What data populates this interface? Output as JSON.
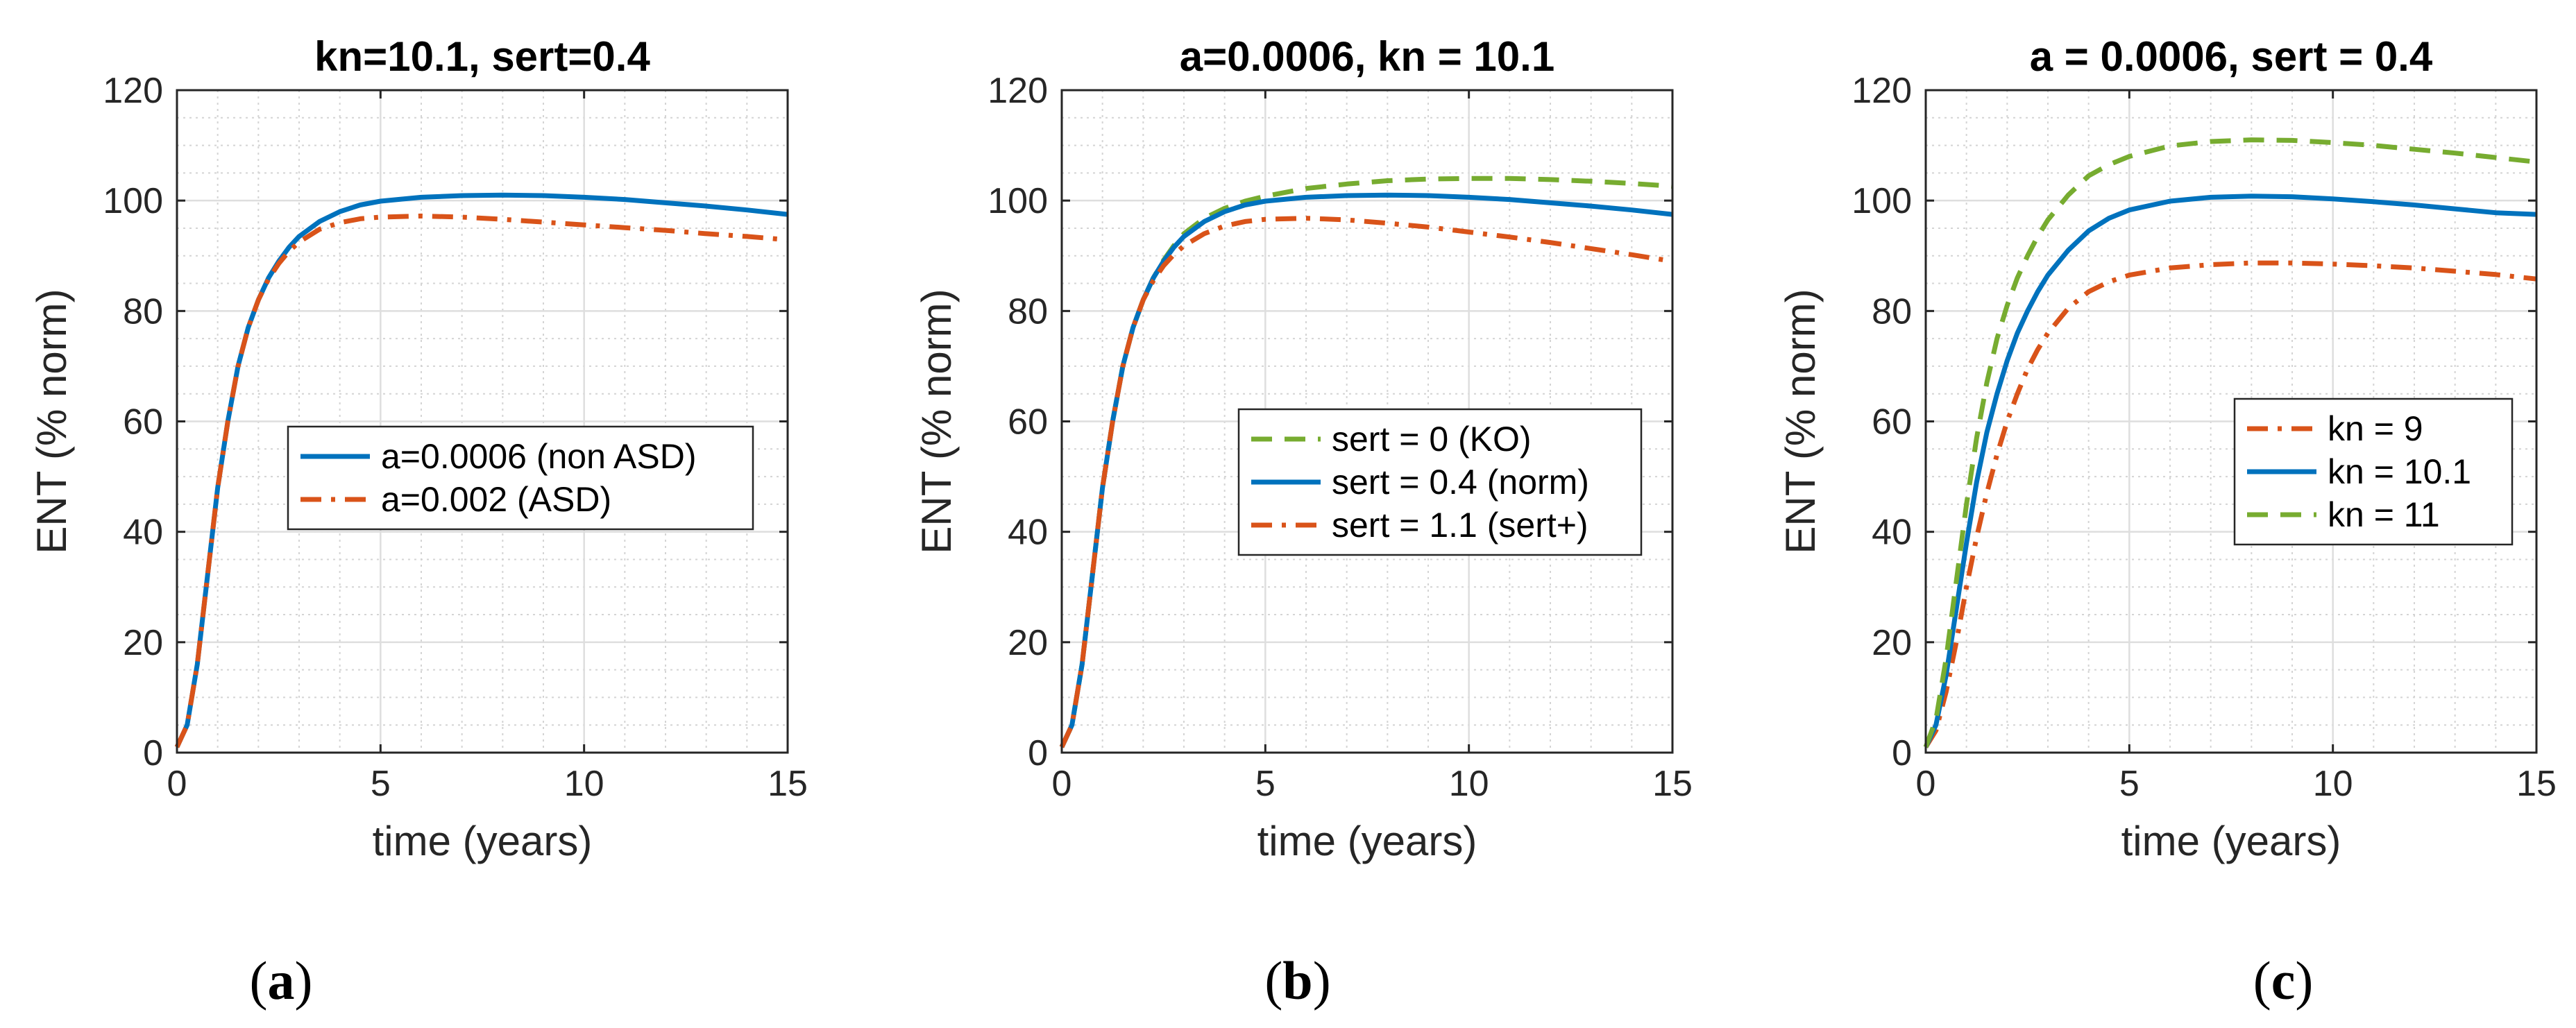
{
  "chart_data": [
    {
      "type": "line",
      "title": "kn=10.1, sert=0.4",
      "xlabel": "time (years)",
      "ylabel": "ENT (% norm)",
      "xlim": [
        0,
        15
      ],
      "ylim": [
        0,
        120
      ],
      "xticks": [
        0,
        5,
        10,
        15
      ],
      "yticks": [
        0,
        20,
        40,
        60,
        80,
        100,
        120
      ],
      "grid": true,
      "legend_position": "center-right",
      "caption": {
        "open": "(",
        "letter": "a",
        "close": ")"
      },
      "series": [
        {
          "name": "a=0.0006 (non ASD)",
          "color": "#0072BD",
          "style": "solid",
          "x": [
            0,
            0.25,
            0.5,
            0.75,
            1,
            1.25,
            1.5,
            1.75,
            2,
            2.25,
            2.5,
            2.75,
            3,
            3.5,
            4,
            4.5,
            5,
            6,
            7,
            8,
            9,
            10,
            11,
            12,
            13,
            14,
            15
          ],
          "y": [
            1,
            5,
            16,
            32,
            48,
            60,
            70,
            77,
            82,
            86,
            89,
            91.5,
            93.5,
            96.2,
            98,
            99.2,
            99.9,
            100.6,
            100.9,
            101,
            100.9,
            100.6,
            100.2,
            99.6,
            99,
            98.3,
            97.5
          ]
        },
        {
          "name": "a=0.002 (ASD)",
          "color": "#D95319",
          "style": "dashdot",
          "x": [
            0,
            0.25,
            0.5,
            0.75,
            1,
            1.25,
            1.5,
            1.75,
            2,
            2.25,
            2.5,
            2.75,
            3,
            3.5,
            4,
            4.5,
            5,
            6,
            7,
            8,
            9,
            10,
            11,
            12,
            13,
            14,
            15
          ],
          "y": [
            1,
            5,
            16,
            32,
            48,
            60,
            70,
            77,
            82,
            85.8,
            88.6,
            90.8,
            92.5,
            94.8,
            96,
            96.7,
            97,
            97.2,
            97,
            96.6,
            96.1,
            95.6,
            95.1,
            94.6,
            94,
            93.5,
            92.9
          ]
        }
      ]
    },
    {
      "type": "line",
      "title": "a=0.0006, kn = 10.1",
      "xlabel": "time (years)",
      "ylabel": "ENT (% norm)",
      "xlim": [
        0,
        15
      ],
      "ylim": [
        0,
        120
      ],
      "xticks": [
        0,
        5,
        10,
        15
      ],
      "yticks": [
        0,
        20,
        40,
        60,
        80,
        100,
        120
      ],
      "grid": true,
      "legend_position": "center-right",
      "caption": {
        "open": "(",
        "letter": "b",
        "close": ")"
      },
      "series": [
        {
          "name": "sert = 0 (KO)",
          "color": "#77AC30",
          "style": "dashed",
          "x": [
            0,
            0.25,
            0.5,
            0.75,
            1,
            1.25,
            1.5,
            1.75,
            2,
            2.25,
            2.5,
            2.75,
            3,
            3.5,
            4,
            4.5,
            5,
            6,
            7,
            8,
            9,
            10,
            11,
            12,
            13,
            14,
            15
          ],
          "y": [
            1,
            5,
            16,
            32,
            48,
            60,
            70,
            77,
            82,
            86,
            89.2,
            91.8,
            94,
            96.8,
            98.6,
            99.9,
            100.8,
            102.2,
            103,
            103.6,
            103.9,
            104,
            104,
            103.8,
            103.5,
            103.1,
            102.6
          ]
        },
        {
          "name": "sert = 0.4 (norm)",
          "color": "#0072BD",
          "style": "solid",
          "x": [
            0,
            0.25,
            0.5,
            0.75,
            1,
            1.25,
            1.5,
            1.75,
            2,
            2.25,
            2.5,
            2.75,
            3,
            3.5,
            4,
            4.5,
            5,
            6,
            7,
            8,
            9,
            10,
            11,
            12,
            13,
            14,
            15
          ],
          "y": [
            1,
            5,
            16,
            32,
            48,
            60,
            70,
            77,
            82,
            86,
            89,
            91.5,
            93.5,
            96.2,
            98,
            99.2,
            99.9,
            100.6,
            100.9,
            101,
            100.9,
            100.6,
            100.2,
            99.6,
            99,
            98.3,
            97.5
          ]
        },
        {
          "name": "sert = 1.1 (sert+)",
          "color": "#D95319",
          "style": "dashdot",
          "x": [
            0,
            0.25,
            0.5,
            0.75,
            1,
            1.25,
            1.5,
            1.75,
            2,
            2.25,
            2.5,
            2.75,
            3,
            3.5,
            4,
            4.5,
            5,
            6,
            7,
            8,
            9,
            10,
            11,
            12,
            13,
            14,
            15
          ],
          "y": [
            1,
            5,
            16,
            32,
            48,
            60,
            70,
            77,
            82,
            85.5,
            88.2,
            90.2,
            91.8,
            94,
            95.4,
            96.2,
            96.6,
            96.8,
            96.5,
            95.9,
            95.2,
            94.3,
            93.4,
            92.4,
            91.3,
            90.2,
            89
          ]
        }
      ]
    },
    {
      "type": "line",
      "title": "a = 0.0006, sert = 0.4",
      "xlabel": "time (years)",
      "ylabel": "ENT (% norm)",
      "xlim": [
        0,
        15
      ],
      "ylim": [
        0,
        120
      ],
      "xticks": [
        0,
        5,
        10,
        15
      ],
      "yticks": [
        0,
        20,
        40,
        60,
        80,
        100,
        120
      ],
      "grid": true,
      "legend_position": "center-right",
      "caption": {
        "open": "(",
        "letter": "c",
        "close": ")"
      },
      "series": [
        {
          "name": "kn = 9",
          "color": "#D95319",
          "style": "dashdot",
          "x": [
            0,
            0.25,
            0.5,
            0.75,
            1,
            1.25,
            1.5,
            1.75,
            2,
            2.25,
            2.5,
            2.75,
            3,
            3.5,
            4,
            4.5,
            5,
            6,
            7,
            8,
            9,
            10,
            11,
            12,
            13,
            14,
            15
          ],
          "y": [
            1,
            4,
            11,
            20,
            30,
            39,
            47,
            54,
            60,
            65,
            69.5,
            73,
            76,
            80.5,
            83.5,
            85.3,
            86.5,
            87.8,
            88.4,
            88.7,
            88.7,
            88.5,
            88.2,
            87.8,
            87.2,
            86.6,
            85.8
          ]
        },
        {
          "name": "kn = 10.1",
          "color": "#0072BD",
          "style": "solid",
          "x": [
            0,
            0.25,
            0.5,
            0.75,
            1,
            1.25,
            1.5,
            1.75,
            2,
            2.25,
            2.5,
            2.75,
            3,
            3.5,
            4,
            4.5,
            5,
            6,
            7,
            8,
            9,
            10,
            11,
            12,
            13,
            14,
            15
          ],
          "y": [
            1,
            5,
            14,
            26,
            38,
            49,
            58,
            65,
            71,
            76,
            80,
            83.5,
            86.5,
            91,
            94.5,
            96.8,
            98.3,
            99.9,
            100.6,
            100.8,
            100.7,
            100.3,
            99.8,
            99.2,
            98.5,
            97.8,
            97.5
          ]
        },
        {
          "name": "kn = 11",
          "color": "#77AC30",
          "style": "dashed",
          "x": [
            0,
            0.25,
            0.5,
            0.75,
            1,
            1.25,
            1.5,
            1.75,
            2,
            2.25,
            2.5,
            2.75,
            3,
            3.5,
            4,
            4.5,
            5,
            6,
            7,
            8,
            9,
            10,
            11,
            12,
            13,
            14,
            15
          ],
          "y": [
            1,
            6,
            17,
            31,
            45,
            57,
            67,
            75,
            81,
            86,
            90,
            93.5,
            96.5,
            101,
            104.5,
            106.5,
            108,
            109.9,
            110.7,
            111,
            110.9,
            110.5,
            110,
            109.3,
            108.6,
            107.8,
            107
          ]
        }
      ]
    }
  ]
}
